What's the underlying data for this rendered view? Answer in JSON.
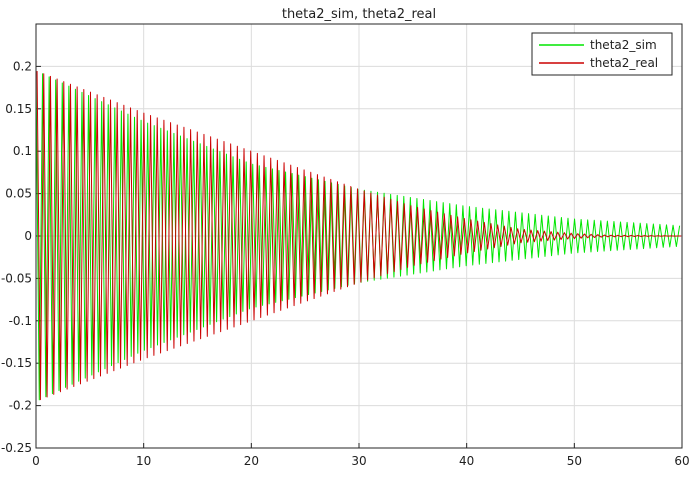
{
  "chart_data": {
    "type": "line",
    "title": "theta2_sim, theta2_real",
    "xlabel": "",
    "ylabel": "",
    "xlim": [
      0,
      60
    ],
    "ylim": [
      -0.25,
      0.25
    ],
    "x_ticks": [
      0,
      10,
      20,
      30,
      40,
      50,
      60
    ],
    "x_tick_labels": [
      "0",
      "10",
      "20",
      "30",
      "40",
      "50",
      "60"
    ],
    "y_ticks": [
      -0.25,
      -0.2,
      -0.15,
      -0.1,
      -0.05,
      0,
      0.05,
      0.1,
      0.15,
      0.2
    ],
    "y_tick_labels": [
      "-0.25",
      "-0.2",
      "-0.15",
      "-0.1",
      "-0.05",
      "0",
      "0.05",
      "0.1",
      "0.15",
      "0.2"
    ],
    "grid": true,
    "legend_position": "top-right",
    "series": [
      {
        "name": "theta2_sim",
        "color": "#00e600",
        "envelope_x": [
          0,
          10,
          20,
          30,
          40,
          50,
          60
        ],
        "envelope_y": [
          0.195,
          0.135,
          0.085,
          0.055,
          0.035,
          0.02,
          0.012
        ]
      },
      {
        "name": "theta2_real",
        "color": "#cc0000",
        "envelope_x": [
          0,
          10,
          20,
          30,
          35,
          40,
          45,
          50,
          53,
          60
        ],
        "envelope_y": [
          0.195,
          0.145,
          0.1,
          0.055,
          0.035,
          0.02,
          0.008,
          0.003,
          0.001,
          0
        ]
      }
    ]
  }
}
